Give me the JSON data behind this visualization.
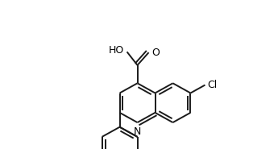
{
  "background": "#ffffff",
  "bond_color": "#1a1a1a",
  "bond_width": 1.4,
  "text_color": "#000000",
  "font_size": 9,
  "figsize": [
    3.14,
    1.85
  ],
  "dpi": 100,
  "xlim": [
    -0.1,
    3.24
  ],
  "ylim": [
    -0.1,
    1.95
  ]
}
